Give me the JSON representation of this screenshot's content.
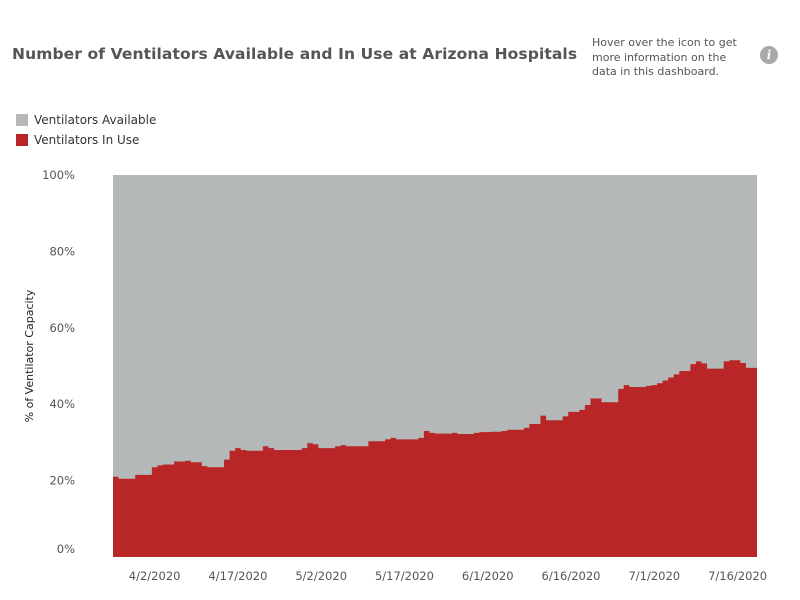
{
  "header": {
    "title": "Number of Ventilators Available and In Use at Arizona Hospitals",
    "info_text": "Hover over the icon to get more information on the data in this dashboard.",
    "info_icon": "info-icon"
  },
  "legend": [
    {
      "label": "Ventilators Available",
      "color": "#b5b8b8"
    },
    {
      "label": "Ventilators In Use",
      "color": "#b92628"
    }
  ],
  "chart_data": {
    "type": "area",
    "stacked": true,
    "ylabel": "% of Ventilator Capacity",
    "ylim": [
      0,
      100
    ],
    "yticks": [
      "0%",
      "20%",
      "40%",
      "60%",
      "80%",
      "100%"
    ],
    "xticks": [
      "4/2/2020",
      "4/17/2020",
      "5/2/2020",
      "5/17/2020",
      "6/1/2020",
      "6/16/2020",
      "7/1/2020",
      "7/16/2020"
    ],
    "x_start": "3/26/2020",
    "x_end": "7/19/2020",
    "grid": false,
    "series": [
      {
        "name": "Ventilators In Use",
        "color": "#b92628",
        "points": [
          [
            "3/26/2020",
            21
          ],
          [
            "3/27/2020",
            20.5
          ],
          [
            "3/28/2020",
            20.5
          ],
          [
            "3/29/2020",
            20.5
          ],
          [
            "3/30/2020",
            21.5
          ],
          [
            "3/31/2020",
            21.5
          ],
          [
            "4/1/2020",
            21.5
          ],
          [
            "4/2/2020",
            23.5
          ],
          [
            "4/3/2020",
            24
          ],
          [
            "4/4/2020",
            24.2
          ],
          [
            "4/5/2020",
            24.2
          ],
          [
            "4/6/2020",
            25
          ],
          [
            "4/7/2020",
            25
          ],
          [
            "4/8/2020",
            25.2
          ],
          [
            "4/9/2020",
            24.8
          ],
          [
            "4/10/2020",
            24.8
          ],
          [
            "4/11/2020",
            23.8
          ],
          [
            "4/12/2020",
            23.5
          ],
          [
            "4/13/2020",
            23.5
          ],
          [
            "4/14/2020",
            23.5
          ],
          [
            "4/15/2020",
            25.5
          ],
          [
            "4/16/2020",
            27.8
          ],
          [
            "4/17/2020",
            28.5
          ],
          [
            "4/18/2020",
            28
          ],
          [
            "4/19/2020",
            27.8
          ],
          [
            "4/20/2020",
            27.8
          ],
          [
            "4/21/2020",
            27.8
          ],
          [
            "4/22/2020",
            29
          ],
          [
            "4/23/2020",
            28.5
          ],
          [
            "4/24/2020",
            28
          ],
          [
            "4/25/2020",
            28
          ],
          [
            "4/26/2020",
            28
          ],
          [
            "4/27/2020",
            28
          ],
          [
            "4/28/2020",
            28
          ],
          [
            "4/29/2020",
            28.5
          ],
          [
            "4/30/2020",
            29.8
          ],
          [
            "5/1/2020",
            29.5
          ],
          [
            "5/2/2020",
            28.5
          ],
          [
            "5/3/2020",
            28.5
          ],
          [
            "5/4/2020",
            28.5
          ],
          [
            "5/5/2020",
            29
          ],
          [
            "5/6/2020",
            29.3
          ],
          [
            "5/7/2020",
            29
          ],
          [
            "5/8/2020",
            29
          ],
          [
            "5/9/2020",
            29
          ],
          [
            "5/10/2020",
            29
          ],
          [
            "5/11/2020",
            30.3
          ],
          [
            "5/12/2020",
            30.3
          ],
          [
            "5/13/2020",
            30.3
          ],
          [
            "5/14/2020",
            30.8
          ],
          [
            "5/15/2020",
            31.2
          ],
          [
            "5/16/2020",
            30.8
          ],
          [
            "5/17/2020",
            30.8
          ],
          [
            "5/18/2020",
            30.8
          ],
          [
            "5/19/2020",
            30.8
          ],
          [
            "5/20/2020",
            31.2
          ],
          [
            "5/21/2020",
            33
          ],
          [
            "5/22/2020",
            32.5
          ],
          [
            "5/23/2020",
            32.3
          ],
          [
            "5/24/2020",
            32.3
          ],
          [
            "5/25/2020",
            32.3
          ],
          [
            "5/26/2020",
            32.5
          ],
          [
            "5/27/2020",
            32.2
          ],
          [
            "5/28/2020",
            32.2
          ],
          [
            "5/29/2020",
            32.2
          ],
          [
            "5/30/2020",
            32.5
          ],
          [
            "5/31/2020",
            32.7
          ],
          [
            "6/1/2020",
            32.7
          ],
          [
            "6/2/2020",
            32.8
          ],
          [
            "6/3/2020",
            32.8
          ],
          [
            "6/4/2020",
            33
          ],
          [
            "6/5/2020",
            33.3
          ],
          [
            "6/6/2020",
            33.3
          ],
          [
            "6/7/2020",
            33.3
          ],
          [
            "6/8/2020",
            33.8
          ],
          [
            "6/9/2020",
            34.8
          ],
          [
            "6/10/2020",
            34.8
          ],
          [
            "6/11/2020",
            37
          ],
          [
            "6/12/2020",
            35.8
          ],
          [
            "6/13/2020",
            35.8
          ],
          [
            "6/14/2020",
            35.8
          ],
          [
            "6/15/2020",
            36.8
          ],
          [
            "6/16/2020",
            38
          ],
          [
            "6/17/2020",
            38
          ],
          [
            "6/18/2020",
            38.5
          ],
          [
            "6/19/2020",
            39.8
          ],
          [
            "6/20/2020",
            41.5
          ],
          [
            "6/21/2020",
            41.5
          ],
          [
            "6/22/2020",
            40.5
          ],
          [
            "6/23/2020",
            40.5
          ],
          [
            "6/24/2020",
            40.5
          ],
          [
            "6/25/2020",
            44
          ],
          [
            "6/26/2020",
            45
          ],
          [
            "6/27/2020",
            44.5
          ],
          [
            "6/28/2020",
            44.5
          ],
          [
            "6/29/2020",
            44.5
          ],
          [
            "6/30/2020",
            44.8
          ],
          [
            "7/1/2020",
            45
          ],
          [
            "7/2/2020",
            45.5
          ],
          [
            "7/3/2020",
            46.2
          ],
          [
            "7/4/2020",
            47
          ],
          [
            "7/5/2020",
            47.8
          ],
          [
            "7/6/2020",
            48.7
          ],
          [
            "7/7/2020",
            48.7
          ],
          [
            "7/8/2020",
            50.5
          ],
          [
            "7/9/2020",
            51.2
          ],
          [
            "7/10/2020",
            50.7
          ],
          [
            "7/11/2020",
            49.3
          ],
          [
            "7/12/2020",
            49.3
          ],
          [
            "7/13/2020",
            49.3
          ],
          [
            "7/14/2020",
            51.2
          ],
          [
            "7/15/2020",
            51.5
          ],
          [
            "7/16/2020",
            51.5
          ],
          [
            "7/17/2020",
            50.8
          ],
          [
            "7/18/2020",
            49.5
          ],
          [
            "7/19/2020",
            49.5
          ]
        ]
      },
      {
        "name": "Ventilators Available",
        "color": "#b5b8b8",
        "fill_to": 100
      }
    ]
  }
}
